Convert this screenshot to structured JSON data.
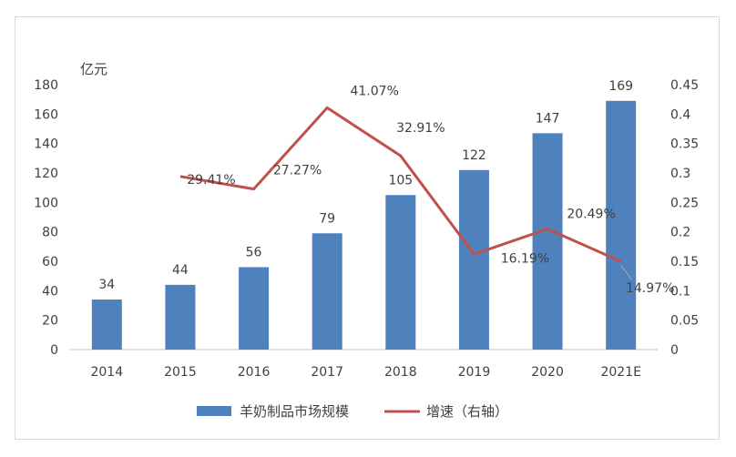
{
  "chart_data": {
    "type": "bar+line",
    "y_unit_label": "亿元",
    "categories": [
      "2014",
      "2015",
      "2016",
      "2017",
      "2018",
      "2019",
      "2020",
      "2021E"
    ],
    "left_axis": {
      "ylim": [
        0,
        180
      ],
      "ticks": [
        "0",
        "20",
        "40",
        "60",
        "80",
        "100",
        "120",
        "140",
        "160",
        "180"
      ]
    },
    "right_axis": {
      "ylim": [
        0,
        0.45
      ],
      "ticks": [
        "0",
        "0.05",
        "0.1",
        "0.15",
        "0.2",
        "0.25",
        "0.3",
        "0.35",
        "0.4",
        "0.45"
      ]
    },
    "series": [
      {
        "name": "羊奶制品市场规模",
        "kind": "bar",
        "axis": "left",
        "color": "#4f81bd",
        "values": [
          34,
          44,
          56,
          79,
          105,
          122,
          147,
          169
        ],
        "labels": [
          "34",
          "44",
          "56",
          "79",
          "105",
          "122",
          "147",
          "169"
        ]
      },
      {
        "name": "增速（右轴）",
        "kind": "line",
        "axis": "right",
        "color": "#c0504d",
        "values": [
          null,
          0.2941,
          0.2727,
          0.4107,
          0.3291,
          0.1619,
          0.2049,
          0.1497
        ],
        "labels": [
          null,
          "29.41%",
          "27.27%",
          "41.07%",
          "32.91%",
          "16.19%",
          "20.49%",
          "14.97%"
        ]
      }
    ],
    "legend_position": "bottom",
    "grid": false
  }
}
